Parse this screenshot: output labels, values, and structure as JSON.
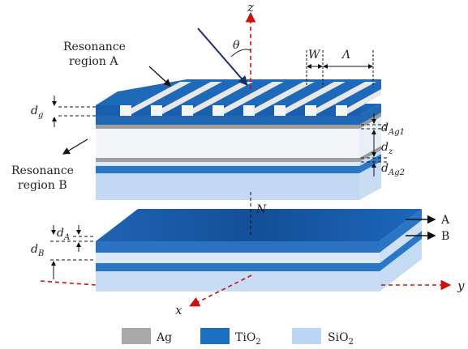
{
  "labels": {
    "resonance_a_line1": "Resonance",
    "resonance_a_line2": "region A",
    "resonance_b_line1": "Resonance",
    "resonance_b_line2": "region B",
    "theta": "θ",
    "W": "W",
    "Lambda": "Λ",
    "N": "N",
    "dg_main": "d",
    "dg_sub": "g",
    "dAg1_main": "d",
    "dAg1_sub": "Ag1",
    "dz_main": "d",
    "dz_sub": "z",
    "dAg2_main": "d",
    "dAg2_sub": "Ag2",
    "dA_main": "d",
    "dA_sub": "A",
    "dB_main": "d",
    "dB_sub": "B",
    "arrow_A": "A",
    "arrow_B": "B"
  },
  "axes": {
    "z": "z",
    "x": "x",
    "y": "y"
  },
  "legend": [
    {
      "name": "Ag",
      "color": "#a8a8a8"
    },
    {
      "name": "TiO",
      "sub": "2",
      "color": "#1a6fc0"
    },
    {
      "name": "SiO",
      "sub": "2",
      "color": "#bcd6f5"
    }
  ],
  "colors": {
    "ag": "#a8a8a8",
    "tio2": "#1a6fc0",
    "sio2": "#bcd6f5",
    "axis": "#cc1111",
    "beam": "#1a2e6e"
  }
}
